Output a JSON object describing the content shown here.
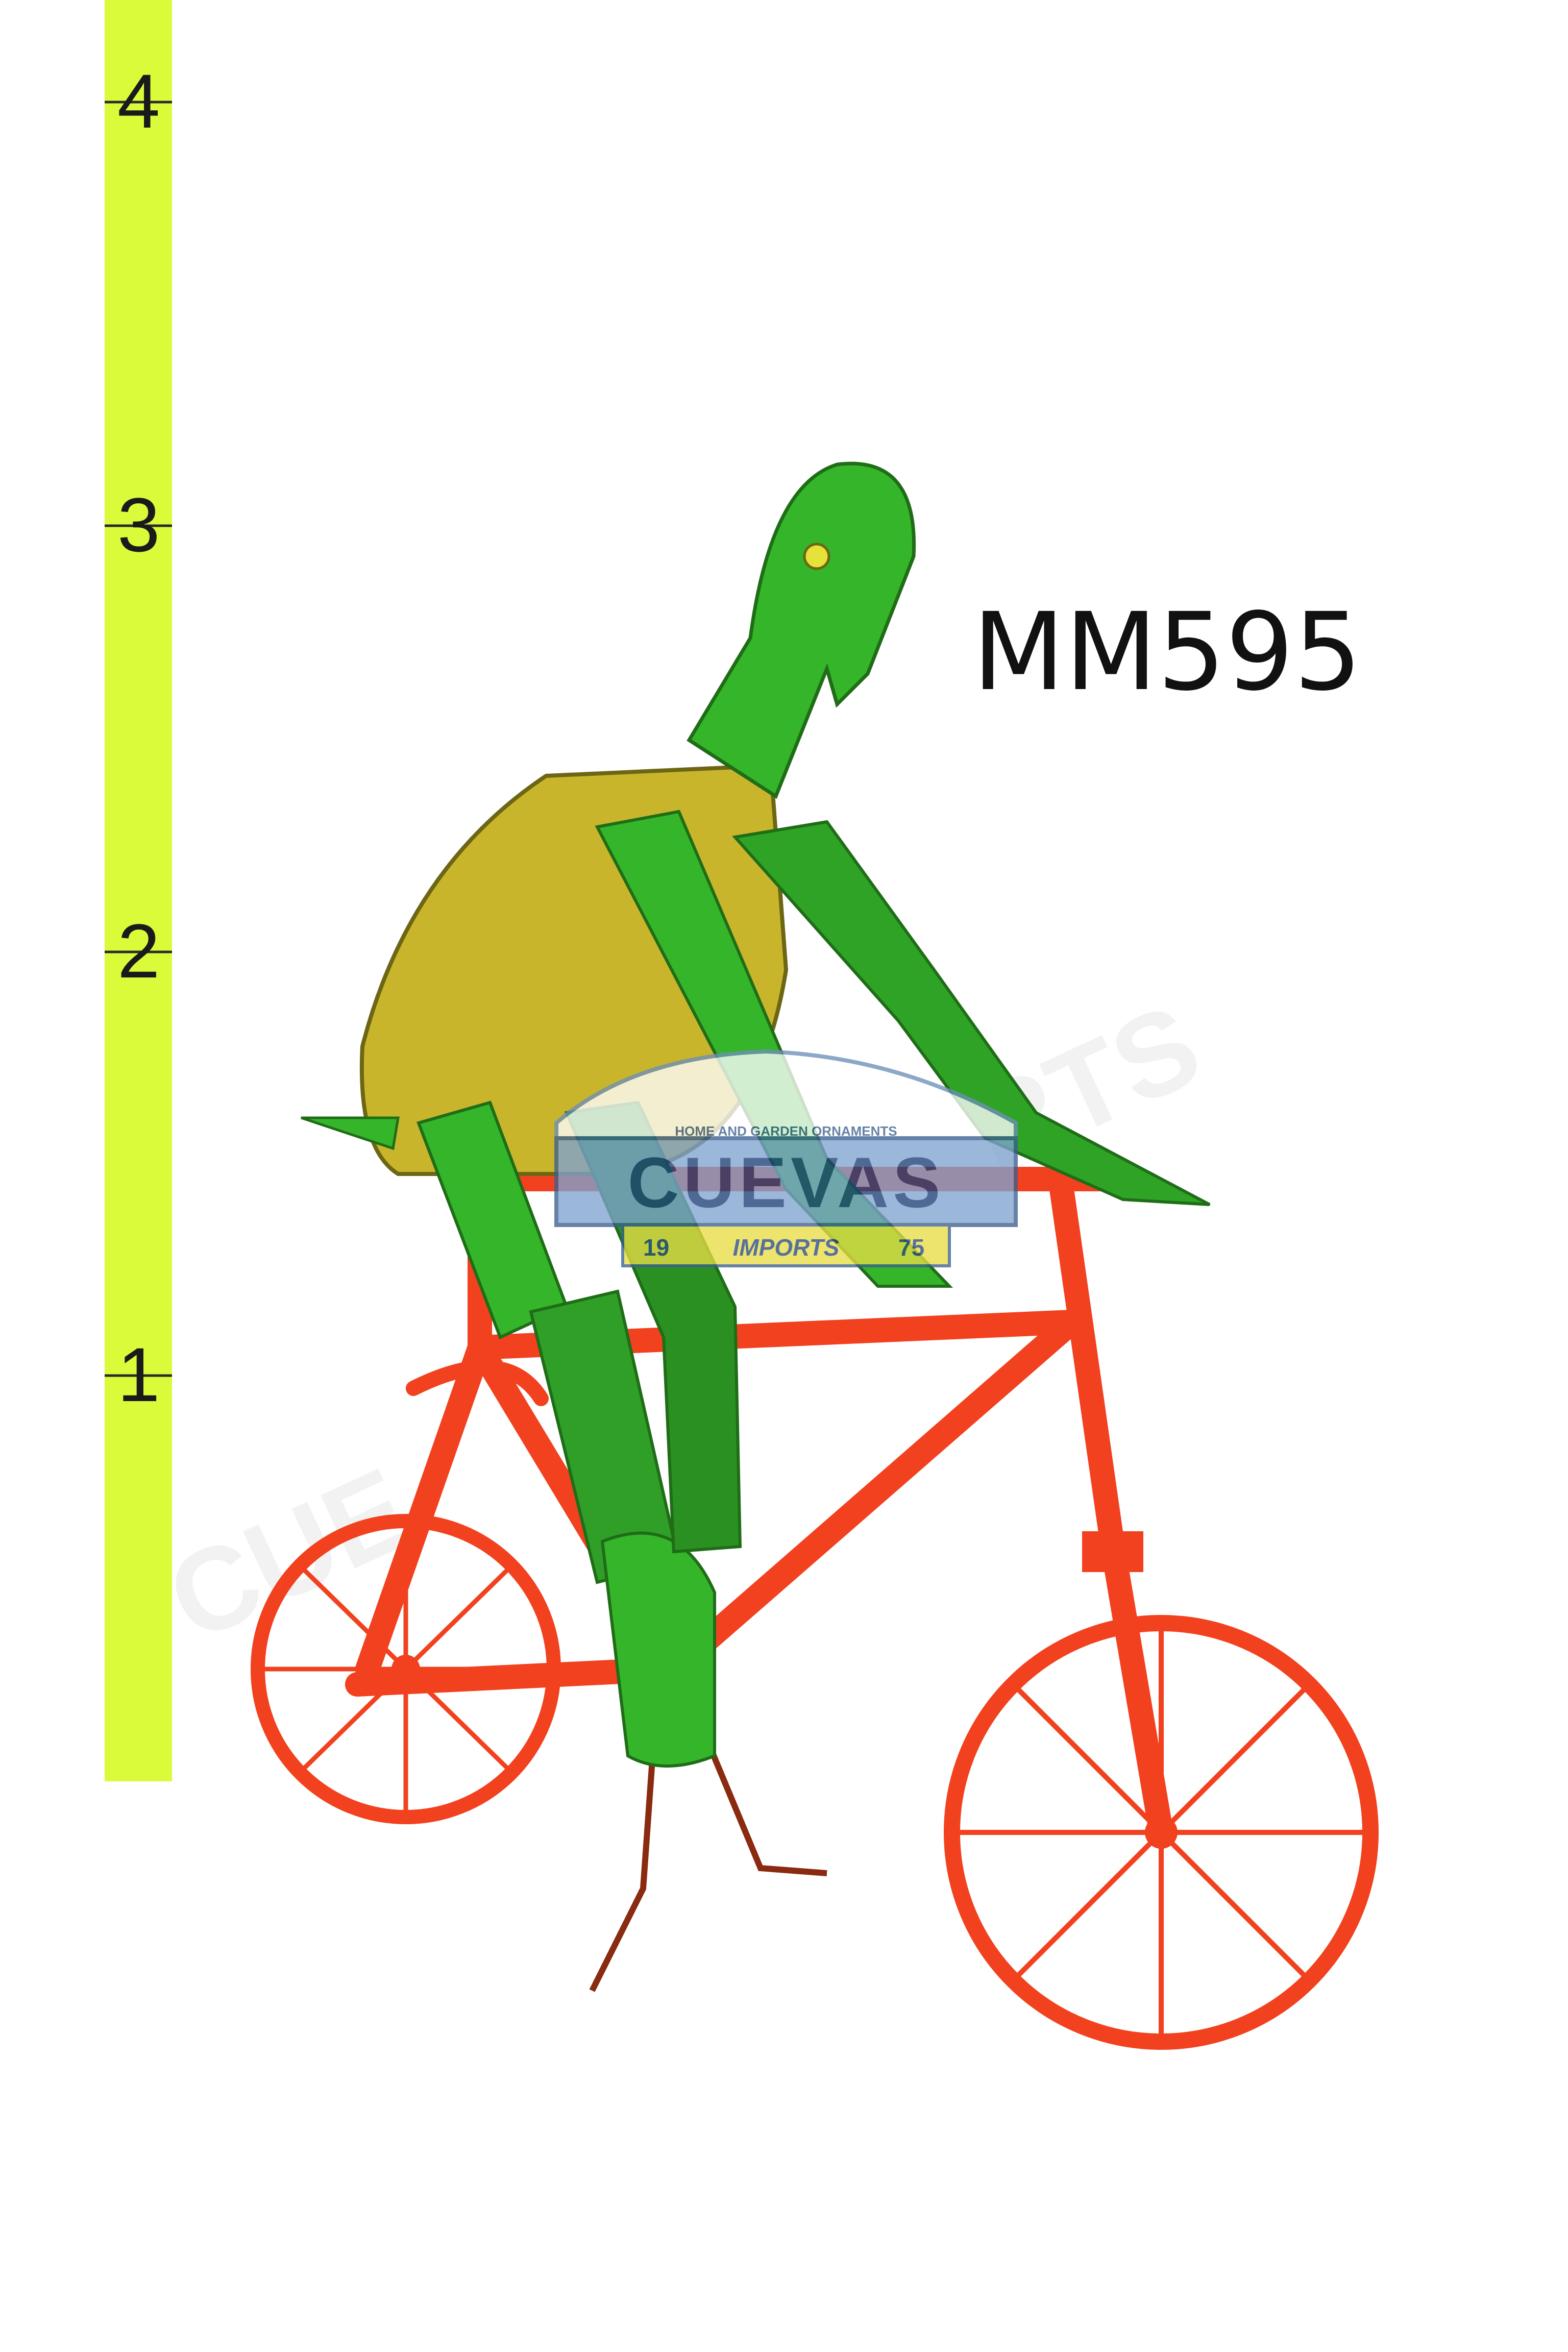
{
  "product_code": "MM595",
  "ruler": {
    "color": "#d9fb3a",
    "marks": [
      "1",
      "2",
      "3",
      "4"
    ]
  },
  "logo": {
    "tagline": "HOME AND GARDEN ORNAMENTS",
    "brand": "CUEVAS",
    "sub": "IMPORTS",
    "year_left": "19",
    "year_right": "75"
  },
  "colors": {
    "frame": "#f2411f",
    "figure": "#35b52a",
    "shell": "#c9b52c"
  }
}
